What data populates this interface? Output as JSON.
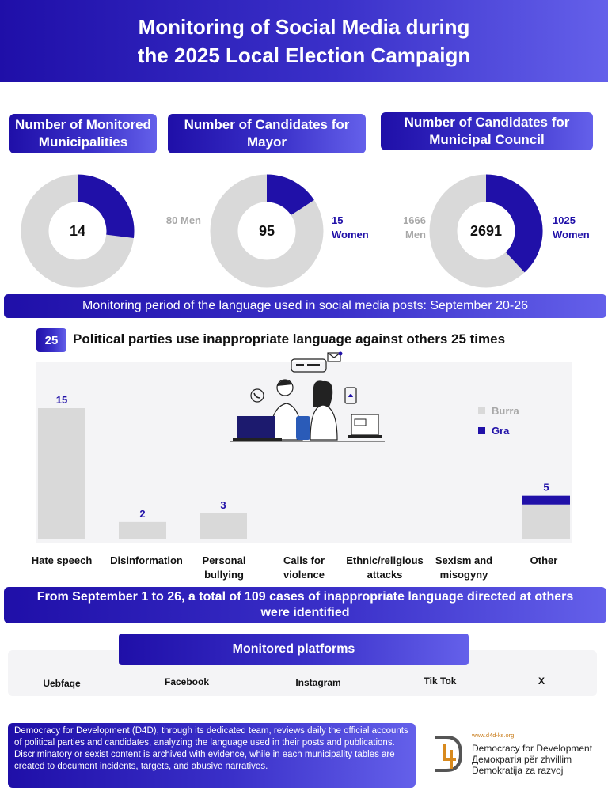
{
  "header": {
    "line1": "Monitoring of Social Media during",
    "line2": "the 2025 Local Election Campaign"
  },
  "stats": [
    {
      "title": "Number of Monitored Municipalities",
      "value": "14",
      "fraction": 0.27
    },
    {
      "title": "Number of Candidates for Mayor",
      "value": "95",
      "men": "80 Men",
      "women_num": "15",
      "women_word": "Women",
      "men_count": 80,
      "women_count": 15
    },
    {
      "title": "Number of Candidates for Municipal Council",
      "value": "2691",
      "men_num": "1666",
      "men_word": "Men",
      "women_num": "1025",
      "women_word": "Women",
      "men_count": 1666,
      "women_count": 1025
    }
  ],
  "colors": {
    "accent": "#2010a8",
    "grey": "#d9d9d9",
    "background_panel": "#f4f4f6"
  },
  "period": "Monitoring period of the language used in social media posts: September 20-26",
  "parties": {
    "badge": "25",
    "title": "Political parties use inappropriate language against others 25 times"
  },
  "chart_data": {
    "type": "bar",
    "stacked": true,
    "categories": [
      "Hate speech",
      "Disinformation",
      "Personal bullying",
      "Calls for violence",
      "Ethnic/religious attacks",
      "Sexism and misogyny",
      "Other"
    ],
    "category_lines": [
      [
        "Hate speech"
      ],
      [
        "Disinformation"
      ],
      [
        "Personal",
        "bullying"
      ],
      [
        "Calls for",
        "violence"
      ],
      [
        "Ethnic/religious",
        "attacks"
      ],
      [
        "Sexism and",
        "misogyny"
      ],
      [
        "Other"
      ]
    ],
    "series": [
      {
        "name": "Burra",
        "color": "#d9d9d9",
        "values": [
          15,
          2,
          3,
          0,
          0,
          0,
          4
        ]
      },
      {
        "name": "Gra",
        "color": "#2010a8",
        "values": [
          0,
          0,
          0,
          0,
          0,
          0,
          1
        ]
      }
    ],
    "totals": [
      "15",
      "2",
      "3",
      "",
      "",
      "",
      "5"
    ],
    "ylim": [
      0,
      15
    ],
    "legend": "top-right",
    "grid": false
  },
  "total_cases": {
    "line1": "From September 1 to 26, a total of 109 cases of inappropriate language directed at others",
    "line2": "were identified"
  },
  "platforms": {
    "title": "Monitored platforms",
    "items": [
      "Uebfaqe",
      "Facebook",
      "Instagram",
      "Tik Tok",
      "X"
    ]
  },
  "footer": {
    "text": "Democracy for Development (D4D), through its dedicated team, reviews daily the official accounts of political parties and candidates, analyzing the language used in their posts and publications. Discriminatory or sexist content is archived with evidence, while in each municipality tables are created to document incidents, targets, and abusive narratives."
  },
  "logo": {
    "url": "www.d4d-ks.org",
    "line1": "Democracy for Development",
    "line2": "Демократія për zhvillim",
    "line3": "Demokratija za razvoj"
  }
}
